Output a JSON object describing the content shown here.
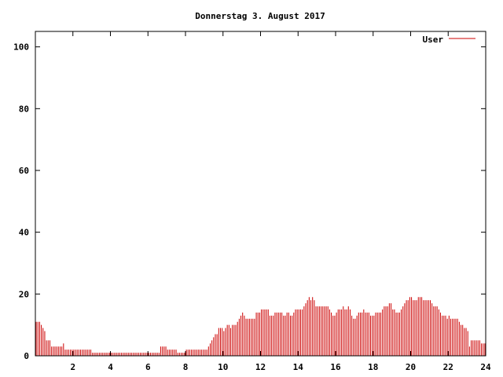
{
  "chart_data": {
    "type": "bar",
    "title": "Donnerstag 3. August 2017",
    "xlabel": "",
    "ylabel": "",
    "xlim": [
      0,
      24
    ],
    "ylim": [
      0,
      105
    ],
    "x_ticks": [
      2,
      4,
      6,
      8,
      10,
      12,
      14,
      16,
      18,
      20,
      22,
      24
    ],
    "y_ticks": [
      0,
      20,
      40,
      60,
      80,
      100
    ],
    "grid": false,
    "legend_position": "top-right",
    "series": [
      {
        "name": "User",
        "color": "#cc0000",
        "interval_hours": 0.0833,
        "values": [
          11,
          11,
          11,
          10,
          9,
          8,
          5,
          5,
          5,
          3,
          3,
          3,
          3,
          3,
          3,
          3,
          4,
          2,
          2,
          2,
          2,
          2,
          2,
          2,
          2,
          2,
          2,
          2,
          2,
          2,
          2,
          2,
          2,
          1,
          1,
          1,
          1,
          1,
          1,
          1,
          1,
          1,
          1,
          1,
          1,
          1,
          1,
          1,
          1,
          1,
          1,
          1,
          1,
          1,
          1,
          1,
          1,
          1,
          1,
          1,
          1,
          1,
          1,
          1,
          1,
          1,
          1,
          1,
          1,
          1,
          1,
          1,
          1,
          3,
          3,
          3,
          3,
          2,
          2,
          2,
          2,
          2,
          2,
          1,
          1,
          1,
          1,
          1,
          2,
          2,
          2,
          2,
          2,
          2,
          2,
          2,
          2,
          2,
          2,
          2,
          2,
          3,
          4,
          5,
          6,
          7,
          7,
          9,
          9,
          9,
          8,
          9,
          10,
          10,
          9,
          10,
          10,
          10,
          11,
          12,
          13,
          14,
          13,
          12,
          12,
          12,
          12,
          12,
          12,
          14,
          14,
          14,
          15,
          15,
          15,
          15,
          15,
          13,
          13,
          13,
          14,
          14,
          14,
          14,
          14,
          13,
          13,
          14,
          14,
          13,
          13,
          14,
          15,
          15,
          15,
          15,
          15,
          16,
          17,
          18,
          19,
          18,
          19,
          18,
          16,
          16,
          16,
          16,
          16,
          16,
          16,
          16,
          15,
          14,
          13,
          13,
          14,
          15,
          15,
          15,
          16,
          15,
          15,
          16,
          15,
          13,
          12,
          12,
          13,
          14,
          14,
          14,
          15,
          14,
          14,
          14,
          13,
          13,
          13,
          14,
          14,
          14,
          14,
          15,
          16,
          16,
          16,
          17,
          17,
          15,
          15,
          14,
          14,
          14,
          15,
          16,
          17,
          18,
          18,
          19,
          19,
          18,
          18,
          18,
          19,
          19,
          19,
          18,
          18,
          18,
          18,
          18,
          17,
          16,
          16,
          16,
          15,
          14,
          13,
          13,
          13,
          12,
          13,
          12,
          12,
          12,
          12,
          12,
          11,
          10,
          10,
          9,
          9,
          8,
          3,
          5,
          5,
          5,
          5,
          5,
          5,
          4,
          4,
          4
        ]
      }
    ]
  }
}
